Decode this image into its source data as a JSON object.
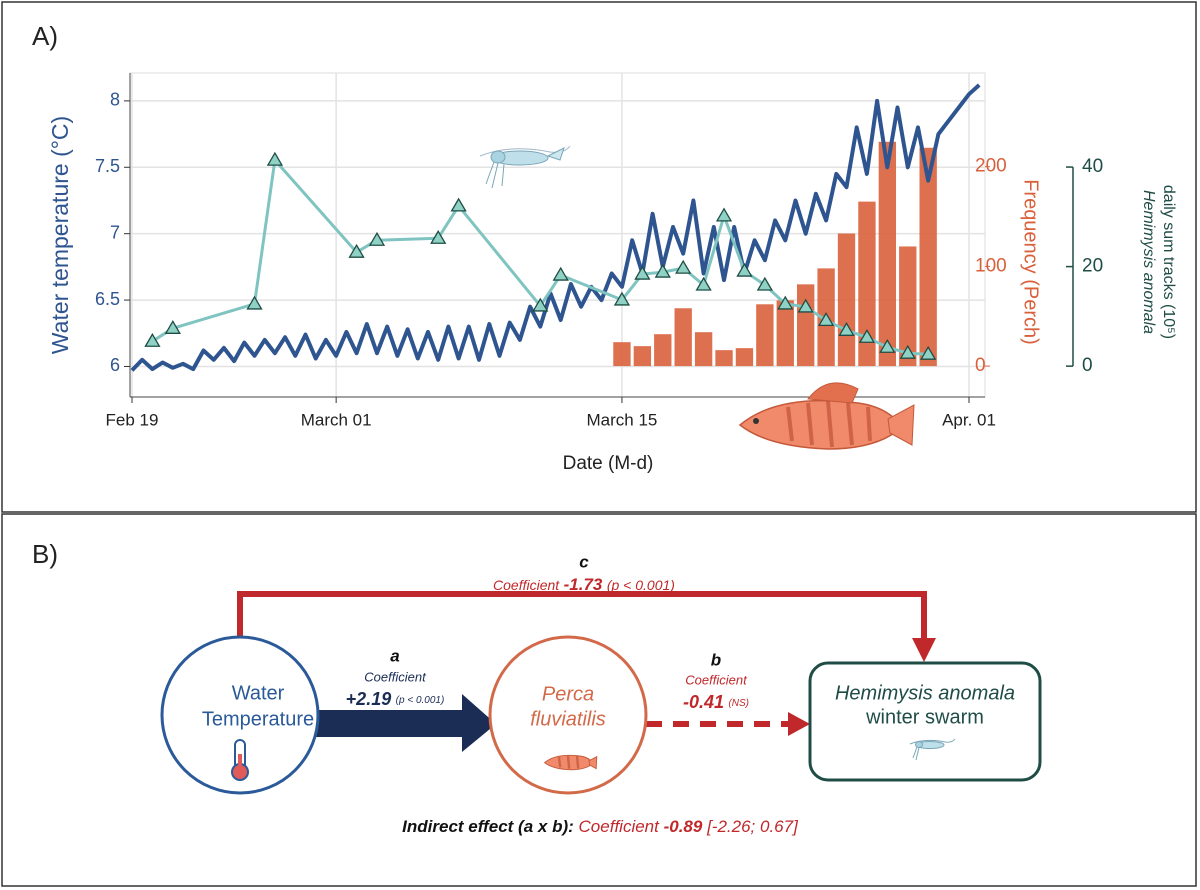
{
  "panel_labels": [
    "A)",
    "B)"
  ],
  "chart_data": {
    "type": "combo",
    "xlabel": "Date (M-d)",
    "ylabel": "Water temperature (°C)",
    "y2label": "Frequency (Perch)",
    "y3label": {
      "species": "Hemimysis anomala",
      "text": "daily sum tracks (10⁵)"
    },
    "xlim": [
      "02-19",
      "04-01"
    ],
    "xticks": [
      {
        "value": "02-19",
        "label": "Feb 19"
      },
      {
        "value": "03-01",
        "label": "March 01"
      },
      {
        "value": "03-15",
        "label": "March 15"
      },
      {
        "value": "04-01",
        "label": "Apr. 01"
      }
    ],
    "ylim": [
      5.77,
      8.21
    ],
    "yticks": [
      6,
      6.5,
      7,
      7.5,
      8
    ],
    "ycolor": "#2e5590",
    "y2lim": [
      -31,
      294
    ],
    "y2ticks": [
      0,
      100,
      200
    ],
    "y2color": "#d9603b",
    "y3lim": [
      -6.2,
      58.9
    ],
    "y3ticks": [
      0,
      20,
      40
    ],
    "y3color": "#1f4d45",
    "grid": true,
    "series": [
      {
        "type": "line",
        "axis": "y",
        "color": "#2e5590",
        "x": [
          "02-19",
          "02-19",
          "02-20",
          "02-20",
          "02-21",
          "02-21",
          "02-22",
          "02-22",
          "02-23",
          "02-23",
          "02-24",
          "02-24",
          "02-25",
          "02-25",
          "02-26",
          "02-26",
          "02-27",
          "02-27",
          "02-28",
          "02-28",
          "03-01",
          "03-01",
          "03-02",
          "03-02",
          "03-03",
          "03-03",
          "03-04",
          "03-04",
          "03-05",
          "03-05",
          "03-06",
          "03-06",
          "03-07",
          "03-07",
          "03-08",
          "03-08",
          "03-09",
          "03-09",
          "03-10",
          "03-10",
          "03-11",
          "03-11",
          "03-12",
          "03-12",
          "03-13",
          "03-13",
          "03-14",
          "03-14",
          "03-15",
          "03-15",
          "03-16",
          "03-16",
          "03-17",
          "03-17",
          "03-18",
          "03-18",
          "03-19",
          "03-19",
          "03-20",
          "03-20",
          "03-21",
          "03-21",
          "03-22",
          "03-22",
          "03-23",
          "03-23",
          "03-24",
          "03-24",
          "03-25",
          "03-25",
          "03-26",
          "03-26",
          "03-27",
          "03-27",
          "03-28",
          "03-28",
          "03-29",
          "03-29",
          "03-30",
          "03-30",
          "03-31",
          "03-31",
          "04-01",
          "04-01"
        ],
        "values": [
          5.97,
          6.05,
          5.98,
          6.03,
          5.99,
          6.02,
          5.98,
          6.12,
          6.05,
          6.14,
          6.04,
          6.18,
          6.08,
          6.2,
          6.1,
          6.22,
          6.08,
          6.24,
          6.06,
          6.2,
          6.08,
          6.26,
          6.1,
          6.32,
          6.1,
          6.3,
          6.08,
          6.28,
          6.06,
          6.26,
          6.05,
          6.3,
          6.06,
          6.3,
          6.05,
          6.32,
          6.08,
          6.33,
          6.2,
          6.45,
          6.3,
          6.55,
          6.35,
          6.62,
          6.45,
          6.6,
          6.5,
          6.7,
          6.6,
          6.95,
          6.7,
          7.15,
          6.75,
          7.05,
          6.85,
          7.25,
          6.7,
          7.05,
          6.65,
          7.05,
          6.7,
          6.95,
          6.8,
          7.1,
          6.95,
          7.25,
          7.0,
          7.3,
          7.1,
          7.45,
          7.35,
          7.8,
          7.45,
          8.0,
          7.5,
          7.95,
          7.5,
          7.8,
          7.4,
          7.75,
          7.85,
          7.95,
          8.05,
          8.12
        ]
      },
      {
        "type": "bar",
        "axis": "y2",
        "color": "#d9603b",
        "x": [
          "03-15",
          "03-16",
          "03-17",
          "03-18",
          "03-19",
          "03-20",
          "03-21",
          "03-22",
          "03-23",
          "03-24",
          "03-25",
          "03-26",
          "03-27",
          "03-28",
          "03-29",
          "03-30"
        ],
        "values": [
          24,
          20,
          32,
          58,
          34,
          16,
          18,
          62,
          66,
          82,
          98,
          133,
          165,
          225,
          120,
          219
        ]
      },
      {
        "type": "line",
        "axis": "y3",
        "marker": "triangle",
        "color": "#7fc4c0",
        "marker_color": "#8fd1c4",
        "x": [
          "02-20",
          "02-21",
          "02-25",
          "02-26",
          "03-02",
          "03-03",
          "03-06",
          "03-07",
          "03-11",
          "03-12",
          "03-15",
          "03-16",
          "03-17",
          "03-18",
          "03-19",
          "03-20",
          "03-21",
          "03-22",
          "03-23",
          "03-24",
          "03-25",
          "03-26",
          "03-27",
          "03-28",
          "03-29",
          "03-30"
        ],
        "values": [
          5.0,
          7.6,
          12.5,
          41.4,
          22.9,
          25.3,
          25.7,
          32.2,
          12.1,
          18.3,
          13.3,
          18.5,
          18.9,
          19.7,
          16.3,
          30.2,
          19.1,
          16.3,
          12.5,
          11.9,
          9.2,
          7.2,
          5.8,
          3.8,
          2.6,
          2.4
        ]
      }
    ]
  },
  "diagram": {
    "nodes": [
      {
        "label": [
          "Water",
          "Temperature"
        ]
      },
      {
        "label": [
          "Perca",
          "fluviatilis"
        ]
      },
      {
        "label": [
          "Hemimysis anomala",
          "winter swarm"
        ]
      }
    ],
    "paths": {
      "a": {
        "letter": "a",
        "text": "Coefficient",
        "value": "+2.19",
        "note": "(p < 0.001)"
      },
      "b": {
        "letter": "b",
        "text": "Coefficient",
        "value": "-0.41",
        "note": "(NS)"
      },
      "c": {
        "letter": "c",
        "text": "Coefficient",
        "value": "-1.73",
        "note": "(p < 0.001)"
      }
    },
    "indirect": {
      "label": "Indirect effect (a x b):",
      "text": "Coefficient",
      "value": "-0.89",
      "note": "[-2.26; 0.67]"
    }
  }
}
